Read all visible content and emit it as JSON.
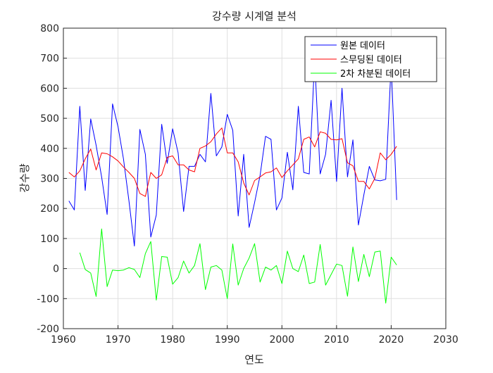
{
  "chart_data": {
    "type": "line",
    "title": "강수량 시계열 분석",
    "xlabel": "연도",
    "ylabel": "강수량",
    "xlim": [
      1960,
      2030
    ],
    "ylim": [
      -200,
      800
    ],
    "xticks": [
      1960,
      1970,
      1980,
      1990,
      2000,
      2010,
      2020,
      2030
    ],
    "yticks": [
      -200,
      -100,
      0,
      100,
      200,
      300,
      400,
      500,
      600,
      700,
      800
    ],
    "grid": true,
    "legend_position": "top-right",
    "series": [
      {
        "name": "원본 데이터",
        "color": "#0000ff",
        "x": [
          1961,
          1962,
          1963,
          1964,
          1965,
          1966,
          1967,
          1968,
          1969,
          1970,
          1971,
          1972,
          1973,
          1974,
          1975,
          1976,
          1977,
          1978,
          1979,
          1980,
          1981,
          1982,
          1983,
          1984,
          1985,
          1986,
          1987,
          1988,
          1989,
          1990,
          1991,
          1992,
          1993,
          1994,
          1995,
          1996,
          1997,
          1998,
          1999,
          2000,
          2001,
          2002,
          2003,
          2004,
          2005,
          2006,
          2007,
          2008,
          2009,
          2010,
          2011,
          2012,
          2013,
          2014,
          2015,
          2016,
          2017,
          2018,
          2019,
          2020,
          2021
        ],
        "y": [
          225,
          195,
          540,
          260,
          498,
          410,
          305,
          180,
          548,
          472,
          365,
          225,
          75,
          463,
          380,
          105,
          178,
          480,
          350,
          465,
          385,
          190,
          340,
          340,
          380,
          355,
          583,
          375,
          405,
          513,
          460,
          175,
          380,
          137,
          220,
          310,
          440,
          430,
          195,
          235,
          387,
          262,
          540,
          320,
          315,
          695,
          315,
          380,
          560,
          290,
          600,
          305,
          428,
          145,
          245,
          340,
          295,
          292,
          297,
          680,
          228
        ]
      },
      {
        "name": "스무딩된 데이터",
        "color": "#ff0000",
        "x": [
          1961,
          1962,
          1963,
          1964,
          1965,
          1966,
          1967,
          1968,
          1969,
          1970,
          1971,
          1972,
          1973,
          1974,
          1975,
          1976,
          1977,
          1978,
          1979,
          1980,
          1981,
          1982,
          1983,
          1984,
          1985,
          1986,
          1987,
          1988,
          1989,
          1990,
          1991,
          1992,
          1993,
          1994,
          1995,
          1996,
          1997,
          1998,
          1999,
          2000,
          2001,
          2002,
          2003,
          2004,
          2005,
          2006,
          2007,
          2008,
          2009,
          2010,
          2011,
          2012,
          2013,
          2014,
          2015,
          2016,
          2017,
          2018,
          2019,
          2020,
          2021
        ],
        "y": [
          320,
          305,
          325,
          365,
          398,
          328,
          385,
          382,
          372,
          358,
          338,
          320,
          300,
          250,
          240,
          320,
          300,
          312,
          370,
          375,
          345,
          345,
          328,
          322,
          400,
          408,
          422,
          448,
          468,
          385,
          385,
          355,
          285,
          245,
          293,
          305,
          318,
          322,
          335,
          303,
          325,
          345,
          365,
          430,
          438,
          405,
          455,
          450,
          430,
          428,
          432,
          352,
          342,
          290,
          290,
          265,
          300,
          385,
          362,
          380,
          407
        ]
      },
      {
        "name": "2차 차분된 데이터",
        "color": "#00ff00",
        "x": [
          1963,
          1964,
          1965,
          1966,
          1967,
          1968,
          1969,
          1970,
          1971,
          1972,
          1973,
          1974,
          1975,
          1976,
          1977,
          1978,
          1979,
          1980,
          1981,
          1982,
          1983,
          1984,
          1985,
          1986,
          1987,
          1988,
          1989,
          1990,
          1991,
          1992,
          1993,
          1994,
          1995,
          1996,
          1997,
          1998,
          1999,
          2000,
          2001,
          2002,
          2003,
          2004,
          2005,
          2006,
          2007,
          2008,
          2009,
          2010,
          2011,
          2012,
          2013,
          2014,
          2015,
          2016,
          2017,
          2018,
          2019,
          2020,
          2021
        ],
        "y": [
          53,
          -3,
          -15,
          -93,
          132,
          -60,
          -5,
          -7,
          -5,
          3,
          -3,
          -30,
          50,
          90,
          -105,
          40,
          38,
          -52,
          -30,
          25,
          -15,
          10,
          83,
          -70,
          5,
          10,
          -5,
          -100,
          82,
          -55,
          0,
          35,
          83,
          -45,
          5,
          -5,
          10,
          -50,
          58,
          0,
          -10,
          45,
          -50,
          -45,
          80,
          -55,
          -20,
          15,
          10,
          -92,
          72,
          -43,
          47,
          -27,
          55,
          58,
          -115,
          38,
          12
        ]
      }
    ]
  }
}
